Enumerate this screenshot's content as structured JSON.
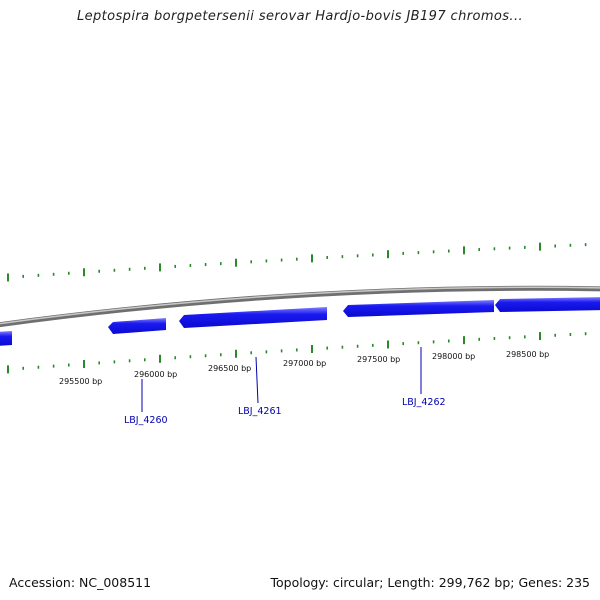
{
  "title": "Leptospira borgpetersenii serovar Hardjo-bovis JB197 chromos...",
  "footer": {
    "accession": "Accession: NC_008511",
    "summary": "Topology: circular; Length: 299,762 bp; Genes: 235"
  },
  "colors": {
    "gene": "#1a1af0",
    "gene_highlight": "#8080ff",
    "tick": "#2a8a2a",
    "backbone": "#8a8a8a",
    "gene_label": "#0000b0"
  },
  "ruler_labels": [
    "295500 bp",
    "296000 bp",
    "296500 bp",
    "297000 bp",
    "297500 bp",
    "298000 bp",
    "298500 bp"
  ],
  "genes": [
    {
      "label": "LBJ_4260"
    },
    {
      "label": "LBJ_4261"
    },
    {
      "label": "LBJ_4262"
    }
  ]
}
